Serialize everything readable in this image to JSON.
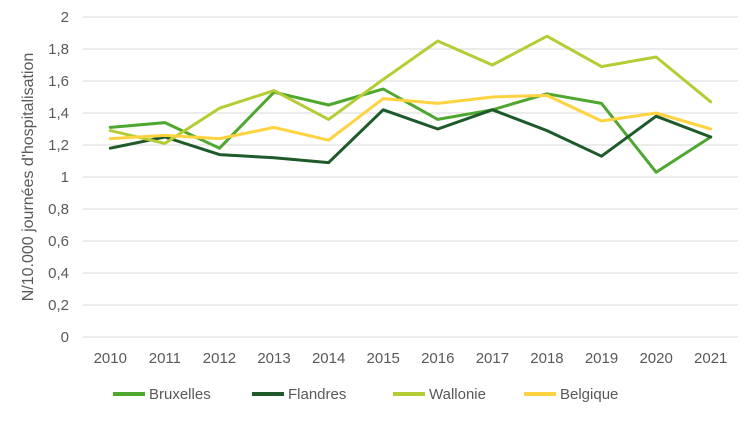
{
  "chart_data": {
    "type": "line",
    "title": "",
    "xlabel": "",
    "ylabel": "N/10.000 journées d'hospitalisation",
    "x": [
      "2010",
      "2011",
      "2012",
      "2013",
      "2014",
      "2015",
      "2016",
      "2017",
      "2018",
      "2019",
      "2020",
      "2021"
    ],
    "yticks": [
      "0",
      "0,2",
      "0,4",
      "0,6",
      "0,8",
      "1",
      "1,2",
      "1,4",
      "1,6",
      "1,8",
      "2"
    ],
    "ylim": [
      0,
      2
    ],
    "grid": true,
    "legend_position": "bottom",
    "series": [
      {
        "name": "Bruxelles",
        "color": "#4ea72e",
        "values": [
          1.31,
          1.34,
          1.18,
          1.53,
          1.45,
          1.55,
          1.36,
          1.42,
          1.52,
          1.46,
          1.03,
          1.25
        ]
      },
      {
        "name": "Flandres",
        "color": "#1e5a2a",
        "values": [
          1.18,
          1.25,
          1.14,
          1.12,
          1.09,
          1.42,
          1.3,
          1.42,
          1.29,
          1.13,
          1.38,
          1.25
        ]
      },
      {
        "name": "Wallonie",
        "color": "#b5cc34",
        "values": [
          1.29,
          1.21,
          1.43,
          1.54,
          1.36,
          1.61,
          1.85,
          1.7,
          1.88,
          1.69,
          1.75,
          1.47
        ]
      },
      {
        "name": "Belgique",
        "color": "#ffd23f",
        "values": [
          1.24,
          1.26,
          1.24,
          1.31,
          1.23,
          1.49,
          1.46,
          1.5,
          1.51,
          1.35,
          1.4,
          1.3
        ]
      }
    ]
  }
}
